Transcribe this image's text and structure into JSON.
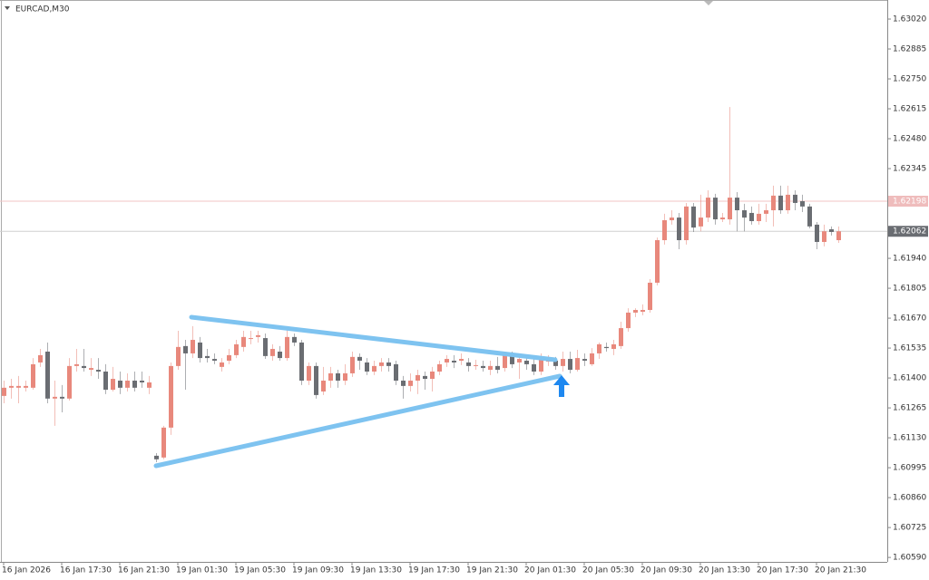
{
  "chart_data": {
    "type": "candlestick",
    "title": "EURCAD,M30",
    "categories": [
      "16 Jan 2026",
      null,
      null,
      null,
      null,
      null,
      null,
      null,
      "16 Jan 17:30",
      null,
      null,
      null,
      null,
      null,
      null,
      null,
      "16 Jan 21:30",
      null,
      null,
      null,
      null,
      null,
      null,
      null,
      "19 Jan 01:30",
      null,
      null,
      null,
      null,
      null,
      null,
      null,
      "19 Jan 05:30",
      null,
      null,
      null,
      null,
      null,
      null,
      null,
      "19 Jan 09:30",
      null,
      null,
      null,
      null,
      null,
      null,
      null,
      "19 Jan 13:30",
      null,
      null,
      null,
      null,
      null,
      null,
      null,
      "19 Jan 17:30",
      null,
      null,
      null,
      null,
      null,
      null,
      null,
      "19 Jan 21:30",
      null,
      null,
      null,
      null,
      null,
      null,
      null,
      "20 Jan 01:30",
      null,
      null,
      null,
      null,
      null,
      null,
      null,
      "20 Jan 05:30",
      null,
      null,
      null,
      null,
      null,
      null,
      null,
      "20 Jan 09:30",
      null,
      null,
      null,
      null,
      null,
      null,
      null,
      "20 Jan 13:30",
      null,
      null,
      null,
      null,
      null,
      null,
      null,
      "20 Jan 17:30",
      null,
      null,
      null,
      null,
      null,
      null,
      null,
      "20 Jan 21:30",
      null,
      null,
      null
    ],
    "open": [
      1.61319,
      1.61356,
      1.61356,
      1.61356,
      1.61356,
      1.6147,
      1.61519,
      1.61307,
      1.61315,
      1.61307,
      1.61454,
      1.61454,
      1.61437,
      1.61437,
      1.61429,
      1.61347,
      1.61388,
      1.61356,
      1.61388,
      1.61388,
      1.61356,
      1.61049,
      1.61041,
      1.61176,
      1.61454,
      1.61544,
      1.61511,
      1.6156,
      1.61499,
      1.61486,
      1.6145,
      1.61478,
      1.61503,
      1.6154,
      1.61576,
      1.61585,
      1.6158,
      1.61499,
      1.61519,
      1.6149,
      1.61585,
      1.6156,
      1.61388,
      1.61454,
      1.61339,
      1.61388,
      1.61421,
      1.61388,
      1.61421,
      1.61495,
      1.6147,
      1.61429,
      1.61454,
      1.6147,
      1.61462,
      1.61388,
      1.61364,
      1.61388,
      1.61409,
      1.61396,
      1.61429,
      1.6147,
      1.61478,
      1.61478,
      1.6147,
      1.61454,
      1.61454,
      1.61437,
      1.61454,
      1.61445,
      1.61503,
      1.6147,
      1.61478,
      1.61462,
      1.61429,
      1.61478,
      1.61478,
      1.61454,
      1.61486,
      1.61437,
      1.61486,
      1.61462,
      1.61511,
      1.6154,
      1.61531,
      1.61544,
      1.61625,
      1.61695,
      1.61699,
      1.61707,
      1.6183,
      1.62022,
      1.62112,
      1.62124,
      1.62022,
      1.62174,
      1.62084,
      1.62124,
      1.62214,
      1.62116,
      1.62116,
      1.62214,
      1.62157,
      1.62145,
      1.62108,
      1.62141,
      1.62157,
      1.62223,
      1.62157,
      1.62227,
      1.62198,
      1.62174,
      1.62092,
      1.62014,
      1.62071,
      1.62022
    ],
    "high": [
      1.61388,
      1.61396,
      1.61409,
      1.61388,
      1.6149,
      1.61531,
      1.6156,
      1.61388,
      1.61368,
      1.6149,
      1.61531,
      1.61531,
      1.6149,
      1.6149,
      1.61462,
      1.6145,
      1.61429,
      1.61421,
      1.61429,
      1.61429,
      1.61409,
      1.61061,
      1.61184,
      1.6147,
      1.61613,
      1.61572,
      1.61634,
      1.61585,
      1.61531,
      1.61511,
      1.6149,
      1.61531,
      1.61572,
      1.61613,
      1.61613,
      1.61613,
      1.61601,
      1.61552,
      1.61544,
      1.61634,
      1.61601,
      1.61572,
      1.6147,
      1.6147,
      1.6145,
      1.6145,
      1.61437,
      1.61462,
      1.61519,
      1.61511,
      1.6149,
      1.61478,
      1.6149,
      1.6149,
      1.61478,
      1.61409,
      1.61421,
      1.61437,
      1.61429,
      1.6145,
      1.61478,
      1.61503,
      1.61503,
      1.61511,
      1.6149,
      1.61482,
      1.61478,
      1.61478,
      1.61495,
      1.61519,
      1.61519,
      1.61511,
      1.61503,
      1.6149,
      1.61511,
      1.61503,
      1.61495,
      1.61519,
      1.61519,
      1.61527,
      1.61511,
      1.61535,
      1.6156,
      1.6156,
      1.61572,
      1.61654,
      1.61715,
      1.61715,
      1.61732,
      1.61846,
      1.62034,
      1.62141,
      1.62157,
      1.62145,
      1.6219,
      1.6219,
      1.62227,
      1.62247,
      1.62231,
      1.62145,
      1.62623,
      1.62239,
      1.62186,
      1.62174,
      1.62186,
      1.62186,
      1.62268,
      1.62268,
      1.62268,
      1.62247,
      1.62227,
      1.62186,
      1.62104,
      1.62092,
      1.62084,
      1.62084
    ],
    "low": [
      1.61286,
      1.61307,
      1.61286,
      1.61339,
      1.61347,
      1.6145,
      1.61286,
      1.61184,
      1.61245,
      1.61298,
      1.61429,
      1.61429,
      1.61409,
      1.61396,
      1.61327,
      1.61339,
      1.61327,
      1.61339,
      1.61339,
      1.61356,
      1.61327,
      1.6102,
      1.61033,
      1.61143,
      1.61437,
      1.61347,
      1.6149,
      1.6147,
      1.6147,
      1.61462,
      1.61429,
      1.61462,
      1.6149,
      1.61519,
      1.61552,
      1.6156,
      1.61486,
      1.61478,
      1.61478,
      1.61478,
      1.61544,
      1.61368,
      1.61368,
      1.61307,
      1.61323,
      1.61356,
      1.61356,
      1.61368,
      1.61405,
      1.61437,
      1.61413,
      1.61413,
      1.61429,
      1.61429,
      1.61368,
      1.61307,
      1.61339,
      1.61327,
      1.61347,
      1.61339,
      1.61413,
      1.6145,
      1.61445,
      1.61458,
      1.61429,
      1.61437,
      1.61429,
      1.61413,
      1.61421,
      1.61429,
      1.61445,
      1.61396,
      1.61437,
      1.61413,
      1.61413,
      1.61454,
      1.61437,
      1.61429,
      1.61421,
      1.61429,
      1.61454,
      1.61454,
      1.61486,
      1.61519,
      1.61503,
      1.61531,
      1.61609,
      1.61675,
      1.61683,
      1.61695,
      1.61818,
      1.62002,
      1.62092,
      1.61981,
      1.62002,
      1.62059,
      1.62062,
      1.62104,
      1.62092,
      1.62104,
      1.62092,
      1.62062,
      1.62062,
      1.62092,
      1.62092,
      1.62104,
      1.62084,
      1.62141,
      1.62141,
      1.62157,
      1.62149,
      1.62075,
      1.61981,
      1.61994,
      1.62043,
      1.6201
    ],
    "close": [
      1.61356,
      1.61364,
      1.61364,
      1.61364,
      1.61462,
      1.61503,
      1.61307,
      1.61315,
      1.61307,
      1.61454,
      1.61462,
      1.61445,
      1.61445,
      1.61429,
      1.61347,
      1.61396,
      1.61356,
      1.61388,
      1.61356,
      1.6138,
      1.6138,
      1.61033,
      1.61176,
      1.61454,
      1.6154,
      1.61511,
      1.61572,
      1.6149,
      1.6149,
      1.61478,
      1.6147,
      1.61503,
      1.61552,
      1.61585,
      1.6158,
      1.61593,
      1.61499,
      1.61531,
      1.6149,
      1.61585,
      1.6156,
      1.61388,
      1.61454,
      1.61323,
      1.61388,
      1.61421,
      1.61388,
      1.61421,
      1.61495,
      1.61478,
      1.61429,
      1.61454,
      1.6147,
      1.61454,
      1.61388,
      1.61364,
      1.61388,
      1.61413,
      1.61396,
      1.61429,
      1.61462,
      1.61486,
      1.6147,
      1.61486,
      1.61454,
      1.61458,
      1.61445,
      1.61454,
      1.61437,
      1.61503,
      1.61462,
      1.61486,
      1.61462,
      1.61429,
      1.61486,
      1.61478,
      1.61454,
      1.61486,
      1.61437,
      1.6149,
      1.61478,
      1.61511,
      1.61552,
      1.61535,
      1.61552,
      1.61625,
      1.61695,
      1.61707,
      1.61707,
      1.6183,
      1.62022,
      1.62112,
      1.62124,
      1.62022,
      1.62174,
      1.62079,
      1.62124,
      1.62214,
      1.62116,
      1.62124,
      1.62214,
      1.62157,
      1.62124,
      1.62108,
      1.62141,
      1.62157,
      1.62223,
      1.62157,
      1.62227,
      1.6219,
      1.62174,
      1.62084,
      1.62014,
      1.62062,
      1.62059,
      1.62062
    ],
    "colors": {
      "up": "#e8887c",
      "down": "#6a6d72"
    },
    "ylim": [
      1.6057,
      1.63106
    ],
    "yticks": [
      {
        "value": 1.6302,
        "label": "1.63020"
      },
      1.62885,
      {
        "value": 1.6275,
        "label": "1.62750"
      },
      1.62615,
      {
        "value": 1.6248,
        "label": "1.62480"
      },
      1.62345,
      {
        "value": 1.6194,
        "label": "1.61940"
      },
      1.61805,
      {
        "value": 1.6167,
        "label": "1.61670"
      },
      1.61535,
      {
        "value": 1.614,
        "label": "1.61400"
      },
      1.61265,
      {
        "value": 1.6113,
        "label": "1.61130"
      },
      1.60995,
      {
        "value": 1.6086,
        "label": "1.60860"
      },
      1.60725,
      {
        "value": 1.6059,
        "label": "1.60590"
      }
    ],
    "grid": false,
    "price_lines": [
      {
        "value": 1.62198,
        "color": "#f0c4c4",
        "label_color": "#efbcbc"
      },
      {
        "value": 1.62062,
        "color": "#d0d0d0",
        "label_color": "#6a6d72"
      }
    ]
  }
}
